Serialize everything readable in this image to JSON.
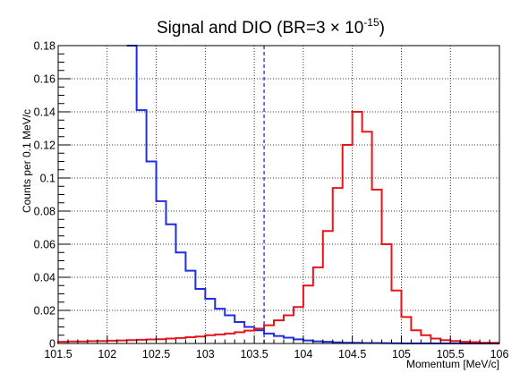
{
  "chart_data": {
    "type": "line",
    "title": "Signal and DIO (BR=3 × 10",
    "title_exponent": "-15",
    "title_close": ")",
    "xlabel": "Momentum [MeV/c]",
    "ylabel": "Counts per 0.1 MeV/c",
    "xlim": [
      101.5,
      106
    ],
    "ylim": [
      0,
      0.18
    ],
    "grid": true,
    "x_ticks": [
      "101.5",
      "102",
      "102.5",
      "103",
      "103.5",
      "104",
      "104.5",
      "105",
      "105.5",
      "106"
    ],
    "y_ticks": [
      "0",
      "0.02",
      "0.04",
      "0.06",
      "0.08",
      "0.1",
      "0.12",
      "0.14",
      "0.16",
      "0.18"
    ],
    "cut_line": {
      "x": 103.6,
      "color": "#1f2ee0"
    },
    "series": [
      {
        "color": "#1f2ee0",
        "bin_edges": [
          102.2,
          102.3,
          102.4,
          102.5,
          102.6,
          102.7,
          102.8,
          102.9,
          103.0,
          103.1,
          103.2,
          103.3,
          103.4,
          103.5,
          103.6,
          103.7,
          103.8,
          103.9,
          104.0,
          104.1,
          104.2,
          104.3,
          104.4,
          104.5,
          104.6,
          104.7,
          104.8,
          104.9,
          105.0,
          105.1,
          105.2,
          105.3,
          105.4,
          105.5,
          105.6,
          105.7,
          105.8,
          105.9,
          106.0
        ],
        "values": [
          0.18,
          0.141,
          0.11,
          0.086,
          0.072,
          0.055,
          0.044,
          0.033,
          0.027,
          0.021,
          0.017,
          0.013,
          0.01,
          0.008,
          0.006,
          0.0045,
          0.0035,
          0.0025,
          0.0018,
          0.0013,
          0.001,
          0.0007,
          0.0005,
          0.0004,
          0.0003,
          0.00025,
          0.0002,
          0.00015,
          0.0001,
          0.0001,
          8e-05,
          6e-05,
          5e-05,
          4e-05,
          3e-05,
          2e-05,
          2e-05,
          1e-05
        ],
        "offscale_start": 102.2
      },
      {
        "color": "#e8141a",
        "bin_edges": [
          101.5,
          101.6,
          101.7,
          101.8,
          101.9,
          102.0,
          102.1,
          102.2,
          102.3,
          102.4,
          102.5,
          102.6,
          102.7,
          102.8,
          102.9,
          103.0,
          103.1,
          103.2,
          103.3,
          103.4,
          103.5,
          103.6,
          103.7,
          103.8,
          103.9,
          104.0,
          104.1,
          104.2,
          104.3,
          104.4,
          104.5,
          104.6,
          104.7,
          104.8,
          104.9,
          105.0,
          105.1,
          105.2,
          105.3,
          105.4,
          105.5,
          105.6,
          105.7,
          105.8,
          105.9,
          106.0
        ],
        "values": [
          0.001,
          0.0012,
          0.0012,
          0.0014,
          0.0015,
          0.0017,
          0.0018,
          0.002,
          0.0022,
          0.0024,
          0.0026,
          0.003,
          0.0033,
          0.0038,
          0.0042,
          0.005,
          0.0055,
          0.006,
          0.0068,
          0.0078,
          0.009,
          0.011,
          0.014,
          0.017,
          0.022,
          0.035,
          0.046,
          0.068,
          0.094,
          0.12,
          0.14,
          0.128,
          0.093,
          0.06,
          0.032,
          0.016,
          0.008,
          0.005,
          0.003,
          0.002,
          0.0015,
          0.001,
          0.0008,
          0.0005,
          0.0004
        ]
      }
    ]
  }
}
